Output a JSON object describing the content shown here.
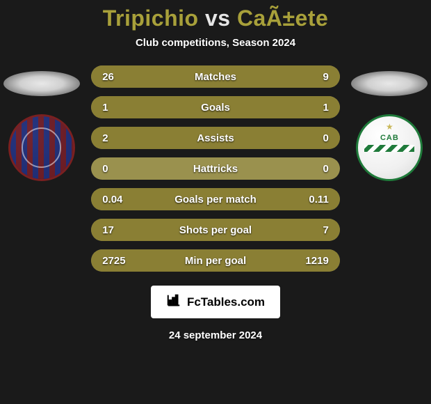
{
  "header": {
    "player1": "Tripichio",
    "vs": "vs",
    "player2": "CaÃ±ete",
    "subtitle": "Club competitions, Season 2024",
    "color_player": "#a8a03a",
    "color_vs": "#e6e6e6"
  },
  "clubs": {
    "left_label": "club-crest-left",
    "right_label": "club-crest-right",
    "right_text": "CAB"
  },
  "stats": {
    "bar_base_color": "#9a914e",
    "bar_fill_color": "#8a7f34",
    "label_fontsize": 15,
    "value_fontsize": 15,
    "rows": [
      {
        "label": "Matches",
        "left": "26",
        "right": "9",
        "left_pct": 74,
        "right_pct": 26
      },
      {
        "label": "Goals",
        "left": "1",
        "right": "1",
        "left_pct": 50,
        "right_pct": 50
      },
      {
        "label": "Assists",
        "left": "2",
        "right": "0",
        "left_pct": 100,
        "right_pct": 0
      },
      {
        "label": "Hattricks",
        "left": "0",
        "right": "0",
        "left_pct": 0,
        "right_pct": 0
      },
      {
        "label": "Goals per match",
        "left": "0.04",
        "right": "0.11",
        "left_pct": 27,
        "right_pct": 73
      },
      {
        "label": "Shots per goal",
        "left": "17",
        "right": "7",
        "left_pct": 71,
        "right_pct": 29
      },
      {
        "label": "Min per goal",
        "left": "2725",
        "right": "1219",
        "left_pct": 69,
        "right_pct": 31
      }
    ]
  },
  "branding": {
    "text": "FcTables.com"
  },
  "footer": {
    "date": "24 september 2024"
  },
  "colors": {
    "background": "#1a1a1a",
    "text": "#ffffff"
  }
}
